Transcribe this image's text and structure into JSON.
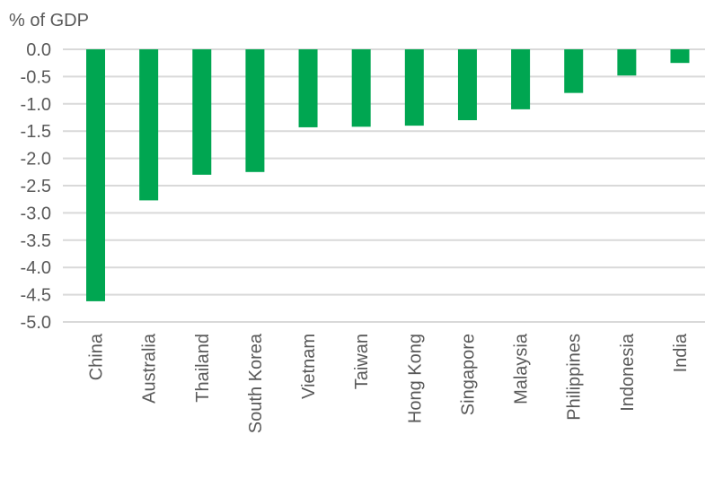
{
  "chart_data": {
    "type": "bar",
    "ylabel": "% of GDP",
    "categories": [
      "China",
      "Australia",
      "Thailand",
      "South Korea",
      "Vietnam",
      "Taiwan",
      "Hong Kong",
      "Singapore",
      "Malaysia",
      "Philippines",
      "Indonesia",
      "India"
    ],
    "values": [
      -4.62,
      -2.77,
      -2.3,
      -2.25,
      -1.43,
      -1.42,
      -1.4,
      -1.3,
      -1.1,
      -0.8,
      -0.48,
      -0.25
    ],
    "ylim": [
      -5.0,
      0.0
    ],
    "yticks": [
      "0.0",
      "-0.5",
      "-1.0",
      "-1.5",
      "-2.0",
      "-2.5",
      "-3.0",
      "-3.5",
      "-4.0",
      "-4.5",
      "-5.0"
    ],
    "grid": true,
    "bar_color": "#00a651",
    "grid_color": "#d9d9d9"
  }
}
